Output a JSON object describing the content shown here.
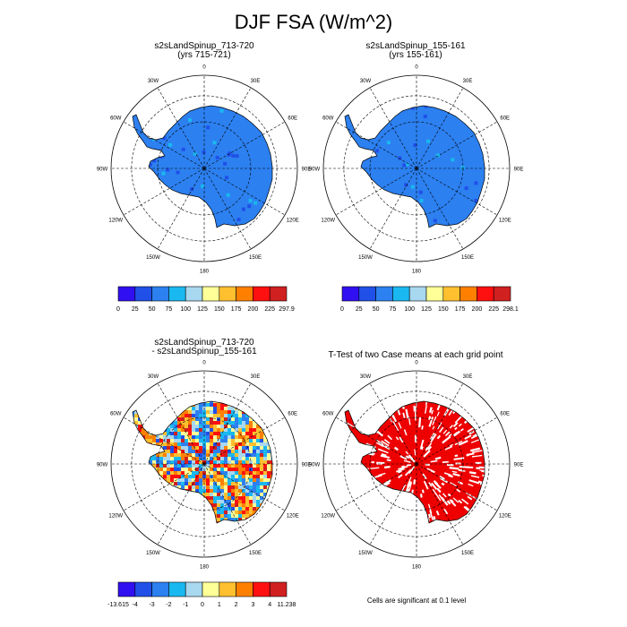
{
  "figure": {
    "title": "DJF FSA (W/m^2)"
  },
  "panels": {
    "case1": {
      "title_line1": "s2sLandSpinup_713-720",
      "title_line2": "(yrs 715-721)"
    },
    "case2": {
      "title_line1": "s2sLandSpinup_155-161",
      "title_line2": "(yrs 155-161)"
    },
    "diff": {
      "title_line1": "s2sLandSpinup_713-720",
      "title_line2": "- s2sLandSpinup_155-161"
    },
    "ttest": {
      "title": "T-Test of two Case means at each grid point",
      "note": "Cells are significant at 0.1 level"
    }
  },
  "map_labels": {
    "lon_0": "0",
    "lon_30e": "30E",
    "lon_60e": "60E",
    "lon_90e": "90E",
    "lon_120e": "120E",
    "lon_150e": "150E",
    "lon_180": "180",
    "lon_150w": "150W",
    "lon_120w": "120W",
    "lon_90w": "90W",
    "lon_60w": "60W",
    "lon_30w": "30W"
  },
  "colorbars": {
    "case1": {
      "labels": [
        "0",
        "25",
        "50",
        "75",
        "100",
        "125",
        "150",
        "175",
        "200",
        "225",
        "297.9"
      ],
      "colors": [
        "#3010f0",
        "#2050e8",
        "#2c80f0",
        "#1ab8f0",
        "#a8d8f0",
        "#ffff98",
        "#ffc030",
        "#ff8000",
        "#ff1010",
        "#d02020"
      ]
    },
    "case2": {
      "labels": [
        "0",
        "25",
        "50",
        "75",
        "100",
        "125",
        "150",
        "175",
        "200",
        "225",
        "298.1"
      ],
      "colors": [
        "#3010f0",
        "#2050e8",
        "#2c80f0",
        "#1ab8f0",
        "#a8d8f0",
        "#ffff98",
        "#ffc030",
        "#ff8000",
        "#ff1010",
        "#d02020"
      ]
    },
    "diff": {
      "labels": [
        "-13.615",
        "-4",
        "-3",
        "-2",
        "-1",
        "0",
        "1",
        "2",
        "3",
        "4",
        "11.238"
      ],
      "colors": [
        "#3010f0",
        "#2050e8",
        "#2c80f0",
        "#1ab8f0",
        "#a8d8f0",
        "#ffff98",
        "#ffc030",
        "#ff8000",
        "#ff1010",
        "#d02020"
      ]
    }
  },
  "colors": {
    "land_fill": "#2c80f0",
    "significant": "#ee0000"
  }
}
